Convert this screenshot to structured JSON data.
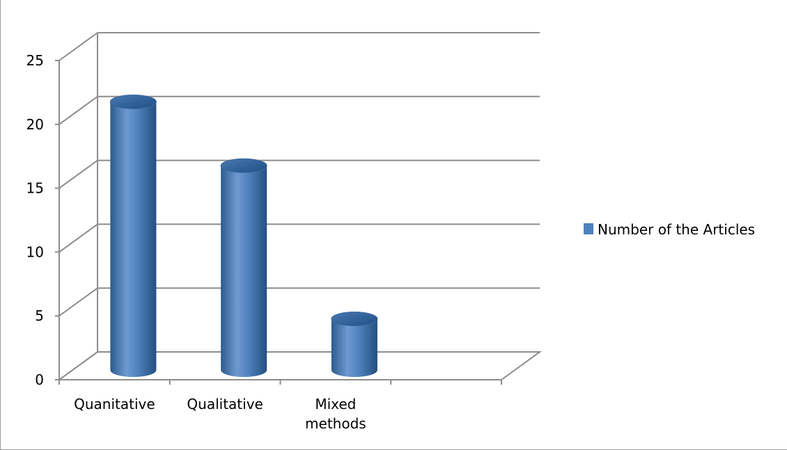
{
  "chart_data": {
    "type": "bar",
    "title": "",
    "xlabel": "",
    "ylabel": "",
    "categories": [
      [
        "Quanitative"
      ],
      [
        "Qualitative"
      ],
      [
        "Mixed",
        "methods"
      ],
      [
        ""
      ]
    ],
    "series": [
      {
        "name": "Number of the Articles",
        "values": [
          21,
          16,
          4,
          null
        ]
      }
    ],
    "ylim": [
      0,
      25
    ],
    "yticks": [
      "0",
      "5",
      "10",
      "15",
      "20",
      "25"
    ],
    "grid": true,
    "legend": "right",
    "shape": "3d-cylinder",
    "colors": {
      "bar_main": "#4f81bd",
      "bar_dark": "#2c5b8e",
      "bar_light": "#7aa3d6",
      "grid": "#8c8c8c",
      "axis": "#8c8c8c"
    }
  }
}
